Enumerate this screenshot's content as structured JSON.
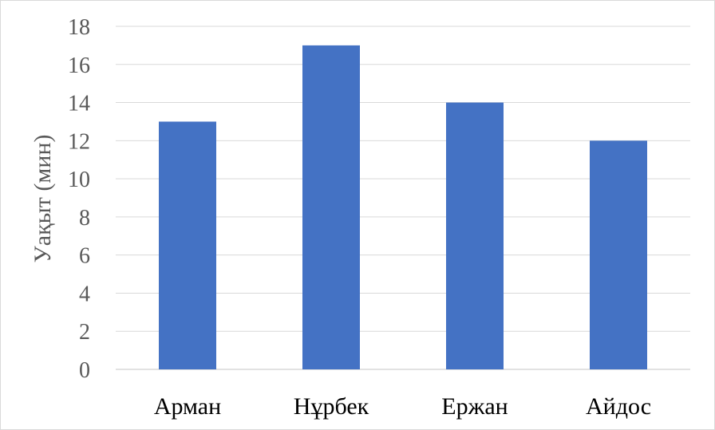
{
  "chart_data": {
    "type": "bar",
    "categories": [
      "Арман",
      "Нұрбек",
      "Ержан",
      "Айдос"
    ],
    "values": [
      13,
      17,
      14,
      12
    ],
    "title": "",
    "xlabel": "",
    "ylabel": "Уақыт (мин)",
    "ylim": [
      0,
      18
    ],
    "yticks": [
      "0",
      "2",
      "4",
      "6",
      "8",
      "10",
      "12",
      "14",
      "16",
      "18"
    ],
    "grid": true,
    "legend": "none",
    "bar_color": "#4472C4",
    "grid_color": "#d9d9d9"
  }
}
